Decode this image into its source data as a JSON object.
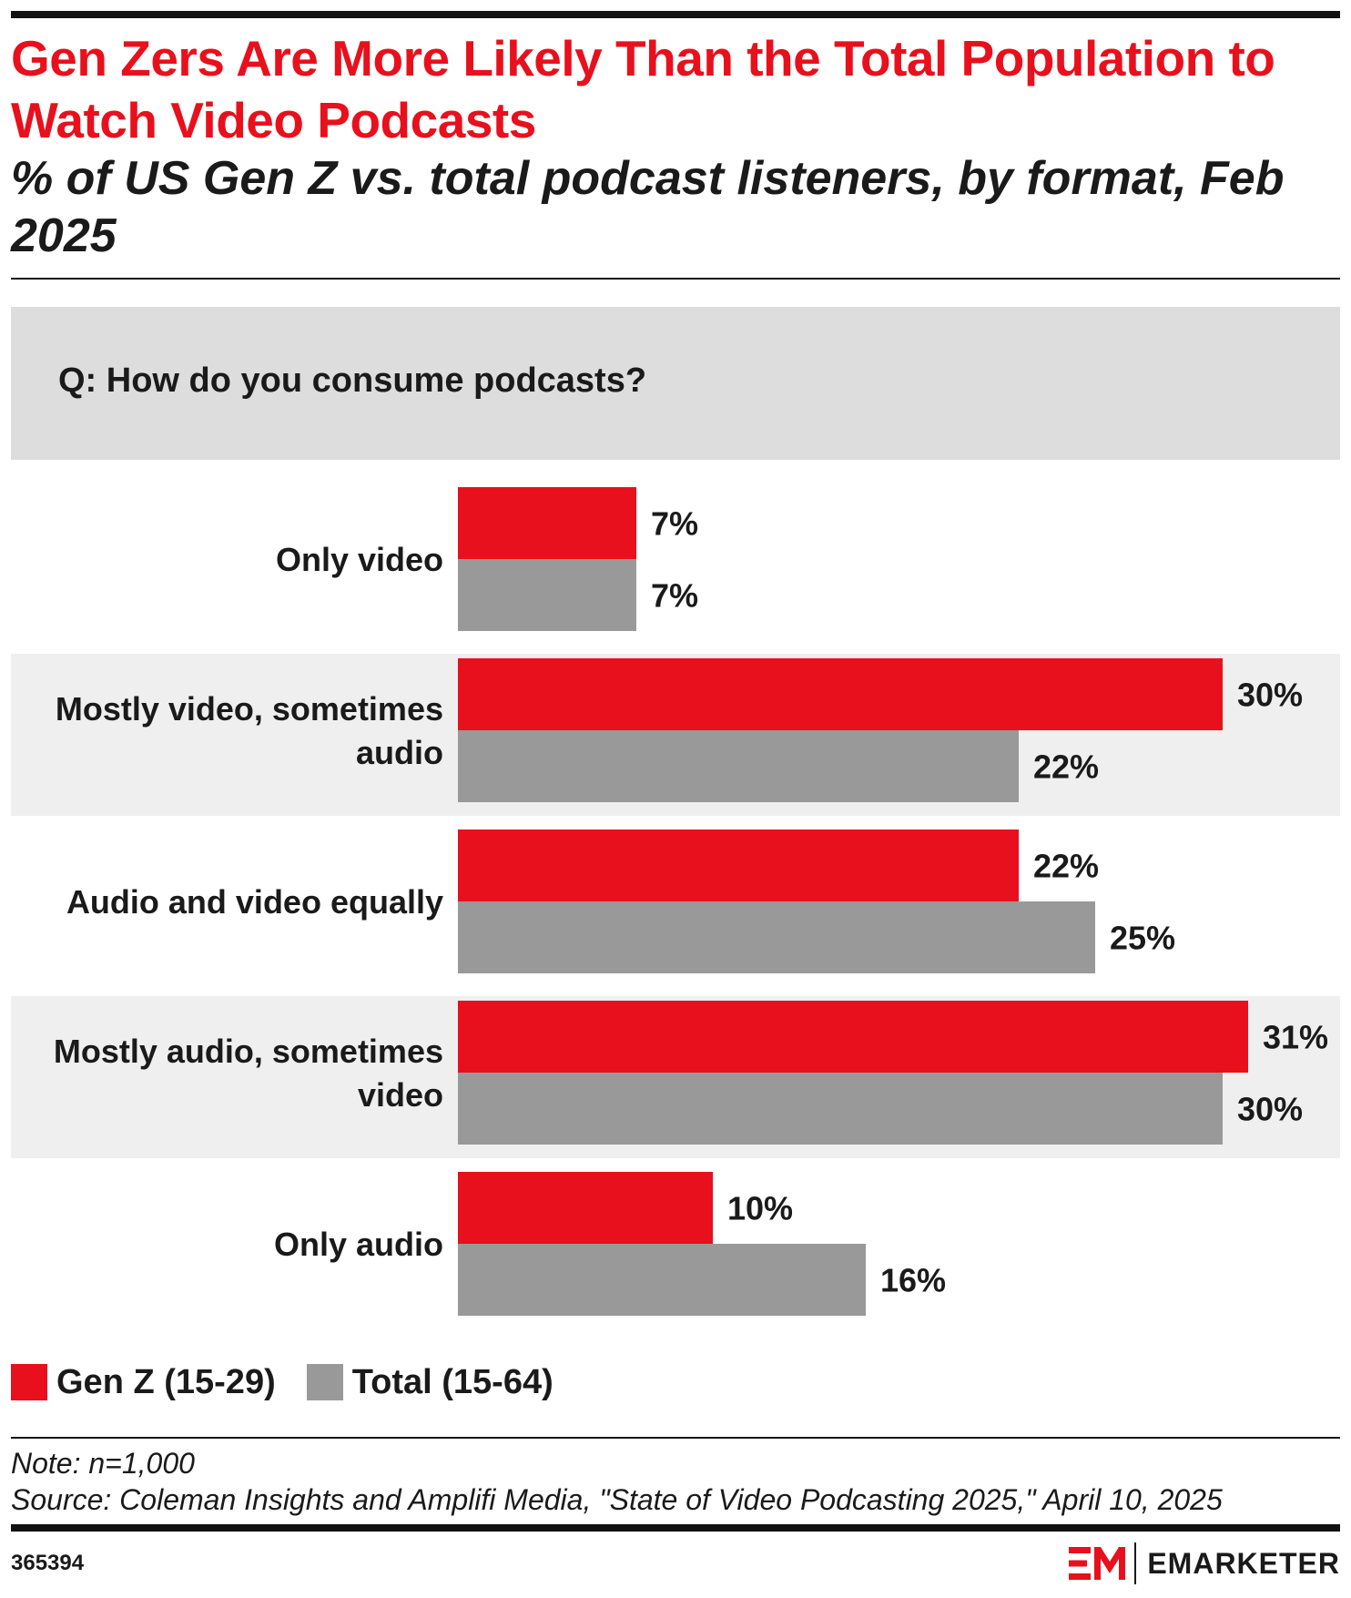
{
  "title": "Gen Zers Are More Likely Than the Total Population to Watch Video Podcasts",
  "subtitle": "% of US Gen Z vs. total podcast listeners, by format, Feb 2025",
  "question": "Q: How do you consume podcasts?",
  "colors": {
    "genz": "#e8101c",
    "total": "#999999",
    "alt_band": "#efefef",
    "question_band": "#dddddd"
  },
  "chart_data": {
    "type": "bar",
    "orientation": "horizontal",
    "categories": [
      "Only video",
      "Mostly video, sometimes audio",
      "Audio and video equally",
      "Mostly audio, sometimes video",
      "Only audio"
    ],
    "category_lines": [
      [
        "Only video"
      ],
      [
        "Mostly video, sometimes",
        "audio"
      ],
      [
        "Audio and video equally"
      ],
      [
        "Mostly audio, sometimes",
        "video"
      ],
      [
        "Only audio"
      ]
    ],
    "series": [
      {
        "name": "Gen Z (15-29)",
        "values": [
          7,
          30,
          22,
          31,
          10
        ],
        "color": "#e8101c"
      },
      {
        "name": "Total (15-64)",
        "values": [
          7,
          22,
          25,
          30,
          16
        ],
        "color": "#999999"
      }
    ],
    "value_suffix": "%",
    "xlim": [
      0,
      32
    ],
    "grid": false,
    "legend_position": "bottom-left"
  },
  "legend": [
    {
      "label": "Gen Z (15-29)",
      "color": "#e8101c"
    },
    {
      "label": "Total (15-64)",
      "color": "#999999"
    }
  ],
  "note": "Note: n=1,000",
  "source": "Source: Coleman Insights and Amplifi Media, \"State of Video Podcasting 2025,\" April 10, 2025",
  "chart_id": "365394",
  "brand": {
    "name": "EMARKETER",
    "mark_icon": "em-logo-icon"
  }
}
